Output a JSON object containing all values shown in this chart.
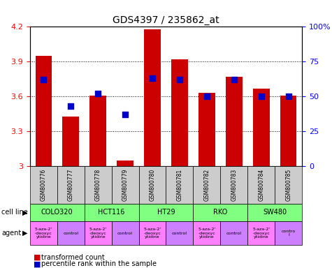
{
  "title": "GDS4397 / 235862_at",
  "samples": [
    "GSM800776",
    "GSM800777",
    "GSM800778",
    "GSM800779",
    "GSM800780",
    "GSM800781",
    "GSM800782",
    "GSM800783",
    "GSM800784",
    "GSM800785"
  ],
  "transformed_counts": [
    3.95,
    3.43,
    3.61,
    3.05,
    4.18,
    3.92,
    3.63,
    3.77,
    3.67,
    3.61
  ],
  "percentile_ranks": [
    62,
    43,
    52,
    37,
    63,
    62,
    50,
    62,
    50,
    50
  ],
  "ylim_left": [
    3.0,
    4.2
  ],
  "ylim_right": [
    0,
    100
  ],
  "yticks_left": [
    3.0,
    3.3,
    3.6,
    3.9,
    4.2
  ],
  "yticks_right": [
    0,
    25,
    50,
    75,
    100
  ],
  "ytick_labels_left": [
    "3",
    "3.3",
    "3.6",
    "3.9",
    "4.2"
  ],
  "ytick_labels_right": [
    "0",
    "25",
    "50",
    "75",
    "100%"
  ],
  "bar_color": "#cc0000",
  "dot_color": "#0000cc",
  "bar_width": 0.6,
  "cell_lines": [
    {
      "name": "COLO320",
      "start": 0,
      "end": 2
    },
    {
      "name": "HCT116",
      "start": 2,
      "end": 4
    },
    {
      "name": "HT29",
      "start": 4,
      "end": 6
    },
    {
      "name": "RKO",
      "start": 6,
      "end": 8
    },
    {
      "name": "SW480",
      "start": 8,
      "end": 10
    }
  ],
  "agents": [
    {
      "name": "5-aza-2'\n-deoxyc\nytidine",
      "type": "drug",
      "idx": 0
    },
    {
      "name": "control",
      "type": "control",
      "idx": 1
    },
    {
      "name": "5-aza-2'\n-deoxyc\nytidine",
      "type": "drug",
      "idx": 2
    },
    {
      "name": "control",
      "type": "control",
      "idx": 3
    },
    {
      "name": "5-aza-2'\n-deoxyc\nytidine",
      "type": "drug",
      "idx": 4
    },
    {
      "name": "control",
      "type": "control",
      "idx": 5
    },
    {
      "name": "5-aza-2'\n-deoxyc\nytidine",
      "type": "drug",
      "idx": 6
    },
    {
      "name": "control",
      "type": "control",
      "idx": 7
    },
    {
      "name": "5-aza-2'\n-deoxyc\nytidine",
      "type": "drug",
      "idx": 8
    },
    {
      "name": "contro\nl",
      "type": "control",
      "idx": 9
    }
  ],
  "drug_color": "#ff80ff",
  "control_color": "#cc80ff",
  "cell_line_color": "#80ff80",
  "sample_bg_color": "#cccccc",
  "legend_red_label": "transformed count",
  "legend_blue_label": "percentile rank within the sample",
  "cell_line_label": "cell line",
  "agent_label": "agent"
}
